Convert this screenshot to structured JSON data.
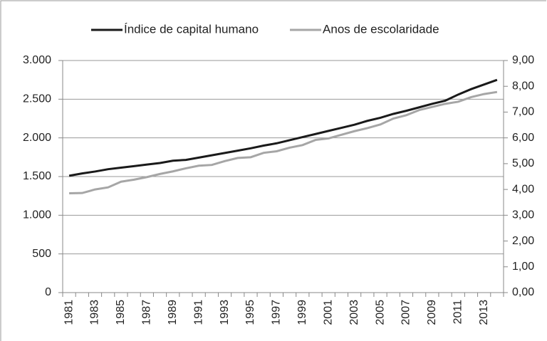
{
  "chart_data": {
    "type": "line",
    "categories": [
      1981,
      null,
      1983,
      null,
      1985,
      null,
      1987,
      null,
      1989,
      null,
      1991,
      null,
      1993,
      null,
      1995,
      null,
      1997,
      null,
      1999,
      null,
      2001,
      null,
      2003,
      null,
      2005,
      null,
      2007,
      null,
      2009,
      null,
      2011,
      null,
      2013,
      null
    ],
    "series": [
      {
        "name": "Índice de capital humano",
        "color": "#1a1a1a",
        "values": [
          1510,
          1540,
          1565,
          1595,
          1615,
          1635,
          1655,
          1675,
          1705,
          1715,
          1745,
          1775,
          1805,
          1835,
          1865,
          1900,
          1930,
          1970,
          2010,
          2050,
          2090,
          2130,
          2170,
          2220,
          2260,
          2310,
          2350,
          2395,
          2440,
          2480,
          2560,
          2630,
          2690,
          2750
        ]
      },
      {
        "name": "Anos de escolaridade",
        "color": "#a6a6a6",
        "axis": "y2",
        "values": [
          3.85,
          3.86,
          4.0,
          4.08,
          4.3,
          4.38,
          4.48,
          4.6,
          4.7,
          4.82,
          4.92,
          4.95,
          5.1,
          5.22,
          5.25,
          5.42,
          5.48,
          5.62,
          5.72,
          5.92,
          5.98,
          6.12,
          6.26,
          6.38,
          6.52,
          6.75,
          6.88,
          7.08,
          7.2,
          7.32,
          7.4,
          7.58,
          7.7,
          7.78
        ]
      }
    ],
    "ylim": [
      0,
      3000
    ],
    "yticks": [
      0,
      500,
      {
        "value": 1000,
        "label": "1.000"
      },
      {
        "value": 1500,
        "label": "1.500"
      },
      {
        "value": 2000,
        "label": "2.000"
      },
      {
        "value": 2500,
        "label": "2.500"
      },
      {
        "value": 3000,
        "label": "3.000"
      }
    ],
    "y2lim": [
      0,
      9
    ],
    "y2ticks": [
      {
        "value": 0,
        "label": "0,00"
      },
      {
        "value": 1,
        "label": "1,00"
      },
      {
        "value": 2,
        "label": "2,00"
      },
      {
        "value": 3,
        "label": "3,00"
      },
      {
        "value": 4,
        "label": "4,00"
      },
      {
        "value": 5,
        "label": "5,00"
      },
      {
        "value": 6,
        "label": "6,00"
      },
      {
        "value": 7,
        "label": "7,00"
      },
      {
        "value": 8,
        "label": "8,00"
      },
      {
        "value": 9,
        "label": "9,00"
      }
    ],
    "grid": true,
    "legend": "top"
  }
}
